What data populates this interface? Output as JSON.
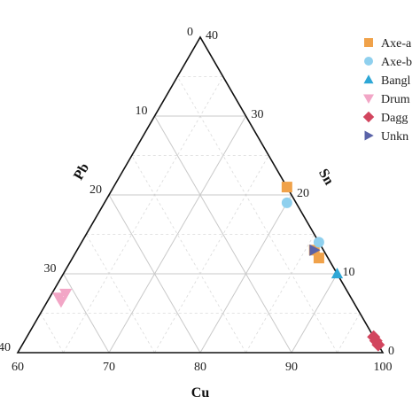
{
  "chart_data": {
    "type": "ternary-scatter",
    "axes": {
      "bottom": {
        "label": "Cu",
        "ticks": [
          "60",
          "70",
          "80",
          "90",
          "100"
        ],
        "range": [
          60,
          100
        ]
      },
      "left": {
        "label": "Pb",
        "ticks": [
          "0",
          "10",
          "20",
          "30",
          "40"
        ],
        "range": [
          0,
          40
        ]
      },
      "right": {
        "label": "Sn",
        "ticks": [
          "0",
          "10",
          "20",
          "30",
          "40"
        ],
        "range": [
          0,
          40
        ]
      }
    },
    "grid": true,
    "legend_position": "top-right",
    "series": [
      {
        "name": "Axe-a",
        "marker": "square",
        "color": "#F0A24A",
        "points": [
          {
            "cu": 79,
            "pb": 0,
            "sn": 21
          },
          {
            "cu": 86,
            "pb": 1,
            "sn": 13
          },
          {
            "cu": 87,
            "pb": 1,
            "sn": 12
          }
        ]
      },
      {
        "name": "Axe-b",
        "marker": "circle",
        "color": "#8FD0EE",
        "points": [
          {
            "cu": 80,
            "pb": 1,
            "sn": 19
          },
          {
            "cu": 86,
            "pb": 0,
            "sn": 14
          }
        ]
      },
      {
        "name": "Bangl",
        "marker": "triangle-up",
        "color": "#2EA7D6",
        "points": [
          {
            "cu": 90,
            "pb": 0,
            "sn": 10
          }
        ]
      },
      {
        "name": "Drum",
        "marker": "triangle-down",
        "color": "#F2A6C6",
        "points": [
          {
            "cu": 61.5,
            "pb": 31,
            "sn": 7.5
          },
          {
            "cu": 61,
            "pb": 32,
            "sn": 7
          },
          {
            "cu": 61.5,
            "pb": 32,
            "sn": 6.5
          }
        ]
      },
      {
        "name": "Dagg",
        "marker": "diamond",
        "color": "#D2455E",
        "points": [
          {
            "cu": 98,
            "pb": 0,
            "sn": 2
          },
          {
            "cu": 98.5,
            "pb": 0,
            "sn": 1.5
          },
          {
            "cu": 99,
            "pb": 0,
            "sn": 1
          }
        ]
      },
      {
        "name": "Unkn",
        "marker": "triangle-right",
        "color": "#5A63A8",
        "points": [
          {
            "cu": 86,
            "pb": 1,
            "sn": 13
          }
        ]
      }
    ]
  }
}
